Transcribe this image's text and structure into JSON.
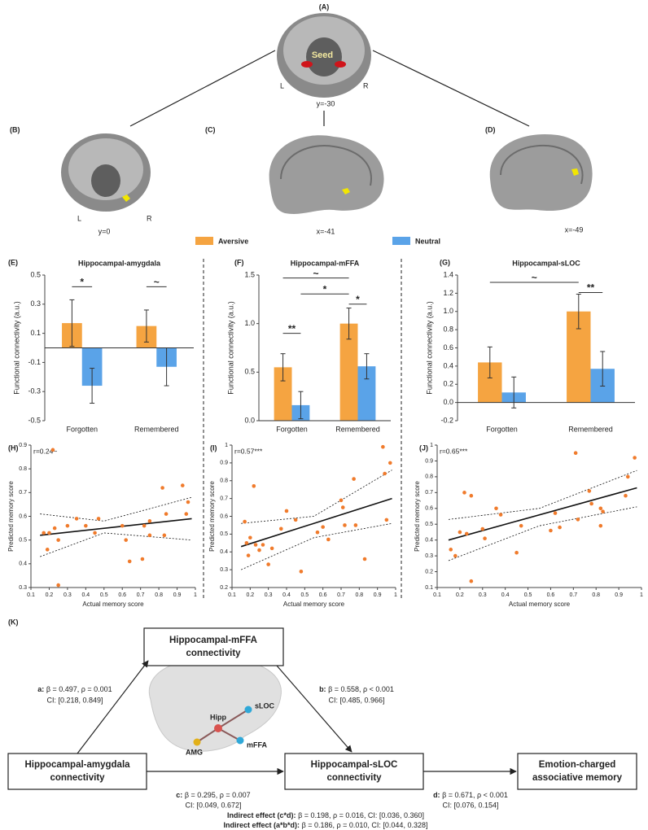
{
  "figure": {
    "panels": [
      "(A)",
      "(B)",
      "(C)",
      "(D)"
    ],
    "brain_labels": {
      "seed": "Seed",
      "a_left": "L",
      "a_right": "R",
      "a_coord": "y=-30",
      "b_left": "L",
      "b_right": "R",
      "b_coord": "y=0",
      "c_coord": "x=-41",
      "d_coord": "x=-49"
    },
    "legend": [
      {
        "name": "Aversive",
        "color": "#f5a441"
      },
      {
        "name": "Neutral",
        "color": "#5aa3e8"
      }
    ]
  },
  "chart_data": [
    {
      "type": "bar",
      "panel": "(E)",
      "title": "Hippocampal-amygdala",
      "ylabel": "Functional connectivity (a.u.)",
      "categories": [
        "Forgotten",
        "Remembered"
      ],
      "series": [
        {
          "color": "#f5a441",
          "values": [
            0.17,
            0.15
          ],
          "errors": [
            0.16,
            0.11
          ]
        },
        {
          "color": "#5aa3e8",
          "values": [
            -0.26,
            -0.13
          ],
          "errors": [
            0.12,
            0.13
          ]
        }
      ],
      "ylim": [
        -0.5,
        0.5
      ],
      "yticks": [
        0.5,
        0.3,
        0.1,
        -0.1,
        -0.3,
        -0.5
      ],
      "annotations": [
        "*",
        "~"
      ]
    },
    {
      "type": "bar",
      "panel": "(F)",
      "title": "Hippocampal-mFFA",
      "ylabel": "Functional connectivity (a.u.)",
      "categories": [
        "Forgotten",
        "Remembered"
      ],
      "series": [
        {
          "color": "#f5a441",
          "values": [
            0.55,
            1.0
          ],
          "errors": [
            0.14,
            0.16
          ]
        },
        {
          "color": "#5aa3e8",
          "values": [
            0.16,
            0.56
          ],
          "errors": [
            0.14,
            0.13
          ]
        }
      ],
      "ylim": [
        0,
        1.5
      ],
      "yticks": [
        {
          "value": 0,
          "label": "0.0"
        },
        0.5,
        {
          "value": 1,
          "label": "1.0"
        },
        1.5
      ],
      "annotations": [
        "~",
        "*",
        "*",
        "**"
      ]
    },
    {
      "type": "bar",
      "panel": "(G)",
      "title": "Hippocampal-sLOC",
      "ylabel": "Functional connectivity (a.u.)",
      "categories": [
        "Forgotten",
        "Remembered"
      ],
      "series": [
        {
          "color": "#f5a441",
          "values": [
            0.44,
            1.0
          ],
          "errors": [
            0.17,
            0.19
          ]
        },
        {
          "color": "#5aa3e8",
          "values": [
            0.11,
            0.37
          ],
          "errors": [
            0.17,
            0.19
          ]
        }
      ],
      "ylim": [
        -0.2,
        1.4
      ],
      "yticks": [
        -0.2,
        {
          "value": 0,
          "label": "0.0"
        },
        0.2,
        0.4,
        0.6,
        0.8,
        {
          "value": 1,
          "label": "1.0"
        },
        1.2,
        1.4
      ],
      "annotations": [
        "~",
        "**"
      ]
    },
    {
      "type": "scatter",
      "panel": "(H)",
      "annotation": "r=0.24~",
      "xlabel": "Actual memory score",
      "ylabel": "Predicted memory score",
      "color": "#f07b2c",
      "x": [
        0.17,
        0.19,
        0.2,
        0.22,
        0.23,
        0.25,
        0.25,
        0.3,
        0.35,
        0.4,
        0.45,
        0.47,
        0.6,
        0.62,
        0.64,
        0.71,
        0.72,
        0.75,
        0.75,
        0.82,
        0.83,
        0.84,
        0.93,
        0.95,
        0.96
      ],
      "y": [
        0.53,
        0.46,
        0.53,
        0.88,
        0.55,
        0.31,
        0.5,
        0.56,
        0.59,
        0.56,
        0.53,
        0.59,
        0.56,
        0.5,
        0.41,
        0.42,
        0.56,
        0.58,
        0.52,
        0.72,
        0.52,
        0.61,
        0.73,
        0.61,
        0.66
      ],
      "fit": {
        "x": [
          0.15,
          0.98
        ],
        "y": [
          0.52,
          0.59
        ]
      },
      "ci_upper": {
        "x": [
          0.15,
          0.5,
          0.98
        ],
        "y": [
          0.61,
          0.58,
          0.68
        ]
      },
      "ci_lower": {
        "x": [
          0.15,
          0.5,
          0.98
        ],
        "y": [
          0.43,
          0.53,
          0.5
        ]
      },
      "xlim": [
        0.1,
        1
      ],
      "xticks": [
        0.1,
        0.2,
        0.3,
        0.4,
        0.5,
        0.6,
        0.7,
        0.8,
        0.9,
        1
      ],
      "ylim": [
        0.3,
        0.9
      ],
      "yticks": [
        0.3,
        0.4,
        0.5,
        0.6,
        0.7,
        0.8,
        0.9
      ]
    },
    {
      "type": "scatter",
      "panel": "(I)",
      "annotation": "r=0.57***",
      "xlabel": "Actual memory score",
      "ylabel": "Predicted memory score",
      "color": "#f07b2c",
      "x": [
        0.17,
        0.18,
        0.19,
        0.2,
        0.22,
        0.23,
        0.25,
        0.27,
        0.3,
        0.32,
        0.37,
        0.4,
        0.45,
        0.48,
        0.57,
        0.6,
        0.63,
        0.7,
        0.71,
        0.72,
        0.77,
        0.78,
        0.83,
        0.93,
        0.94,
        0.95,
        0.97
      ],
      "y": [
        0.57,
        0.45,
        0.38,
        0.48,
        0.77,
        0.44,
        0.41,
        0.44,
        0.33,
        0.42,
        0.53,
        0.63,
        0.58,
        0.29,
        0.51,
        0.54,
        0.47,
        0.69,
        0.65,
        0.55,
        0.81,
        0.55,
        0.36,
        0.99,
        0.84,
        0.58,
        0.9
      ],
      "fit": {
        "x": [
          0.15,
          0.98
        ],
        "y": [
          0.43,
          0.7
        ]
      },
      "ci_upper": {
        "x": [
          0.15,
          0.55,
          0.98
        ],
        "y": [
          0.56,
          0.6,
          0.86
        ]
      },
      "ci_lower": {
        "x": [
          0.15,
          0.55,
          0.98
        ],
        "y": [
          0.3,
          0.48,
          0.56
        ]
      },
      "xlim": [
        0.1,
        1
      ],
      "xticks": [
        0.1,
        0.2,
        0.3,
        0.4,
        0.5,
        0.6,
        0.7,
        0.8,
        0.9,
        1
      ],
      "ylim": [
        0.2,
        1
      ],
      "yticks": [
        0.2,
        0.3,
        0.4,
        0.5,
        0.6,
        0.7,
        0.8,
        0.9,
        1
      ]
    },
    {
      "type": "scatter",
      "panel": "(J)",
      "annotation": "r=0.65***",
      "xlabel": "Actual memory score",
      "ylabel": "Predicted memory score",
      "color": "#f07b2c",
      "x": [
        0.16,
        0.18,
        0.2,
        0.22,
        0.23,
        0.25,
        0.25,
        0.3,
        0.31,
        0.36,
        0.38,
        0.45,
        0.47,
        0.6,
        0.62,
        0.64,
        0.71,
        0.72,
        0.77,
        0.78,
        0.82,
        0.82,
        0.83,
        0.93,
        0.94,
        0.97
      ],
      "y": [
        0.34,
        0.3,
        0.45,
        0.7,
        0.44,
        0.68,
        0.14,
        0.47,
        0.41,
        0.6,
        0.56,
        0.32,
        0.49,
        0.46,
        0.57,
        0.48,
        0.95,
        0.53,
        0.71,
        0.63,
        0.6,
        0.49,
        0.58,
        0.68,
        0.8,
        0.92
      ],
      "fit": {
        "x": [
          0.15,
          0.98
        ],
        "y": [
          0.4,
          0.73
        ]
      },
      "ci_upper": {
        "x": [
          0.15,
          0.55,
          0.98
        ],
        "y": [
          0.53,
          0.6,
          0.84
        ]
      },
      "ci_lower": {
        "x": [
          0.15,
          0.55,
          0.98
        ],
        "y": [
          0.27,
          0.49,
          0.61
        ]
      },
      "xlim": [
        0.1,
        1
      ],
      "xticks": [
        0.1,
        0.2,
        0.3,
        0.4,
        0.5,
        0.6,
        0.7,
        0.8,
        0.9,
        1
      ],
      "ylim": [
        0.1,
        1
      ],
      "yticks": [
        0.1,
        0.2,
        0.3,
        0.4,
        0.5,
        0.6,
        0.7,
        0.8,
        0.9,
        1
      ]
    }
  ],
  "mediation": {
    "panel": "(K)",
    "nodes": {
      "mffa": [
        "Hippocampal-mFFA",
        "connectivity"
      ],
      "amygdala": [
        "Hippocampal-amygdala",
        "connectivity"
      ],
      "sloc": [
        "Hippocampal-sLOC",
        "connectivity"
      ],
      "memory": [
        "Emotion-charged",
        "associative memory"
      ]
    },
    "paths": {
      "a": {
        "key": "a:",
        "stat": "β = 0.497, ρ = 0.001",
        "ci": "CI: [0.218, 0.849]"
      },
      "b": {
        "key": "b:",
        "stat": "β = 0.558, ρ < 0.001",
        "ci": "CI: [0.485, 0.966]"
      },
      "c": {
        "key": "c:",
        "stat": "β = 0.295, ρ = 0.007",
        "ci": "CI: [0.049, 0.672]"
      },
      "d": {
        "key": "d:",
        "stat": "β = 0.671, ρ < 0.001",
        "ci": "CI: [0.076, 0.154]"
      }
    },
    "brain_nodes": [
      "Hipp",
      "sLOC",
      "AMG",
      "mFFA"
    ],
    "indirect": [
      {
        "key": "Indirect effect (c*d):",
        "stat": "β = 0.198, ρ = 0.016, CI: [0.036, 0.360]"
      },
      {
        "key": "Indirect effect (a*b*d):",
        "stat": "β = 0.186, ρ = 0.010, CI: [0.044, 0.328]"
      }
    ]
  }
}
